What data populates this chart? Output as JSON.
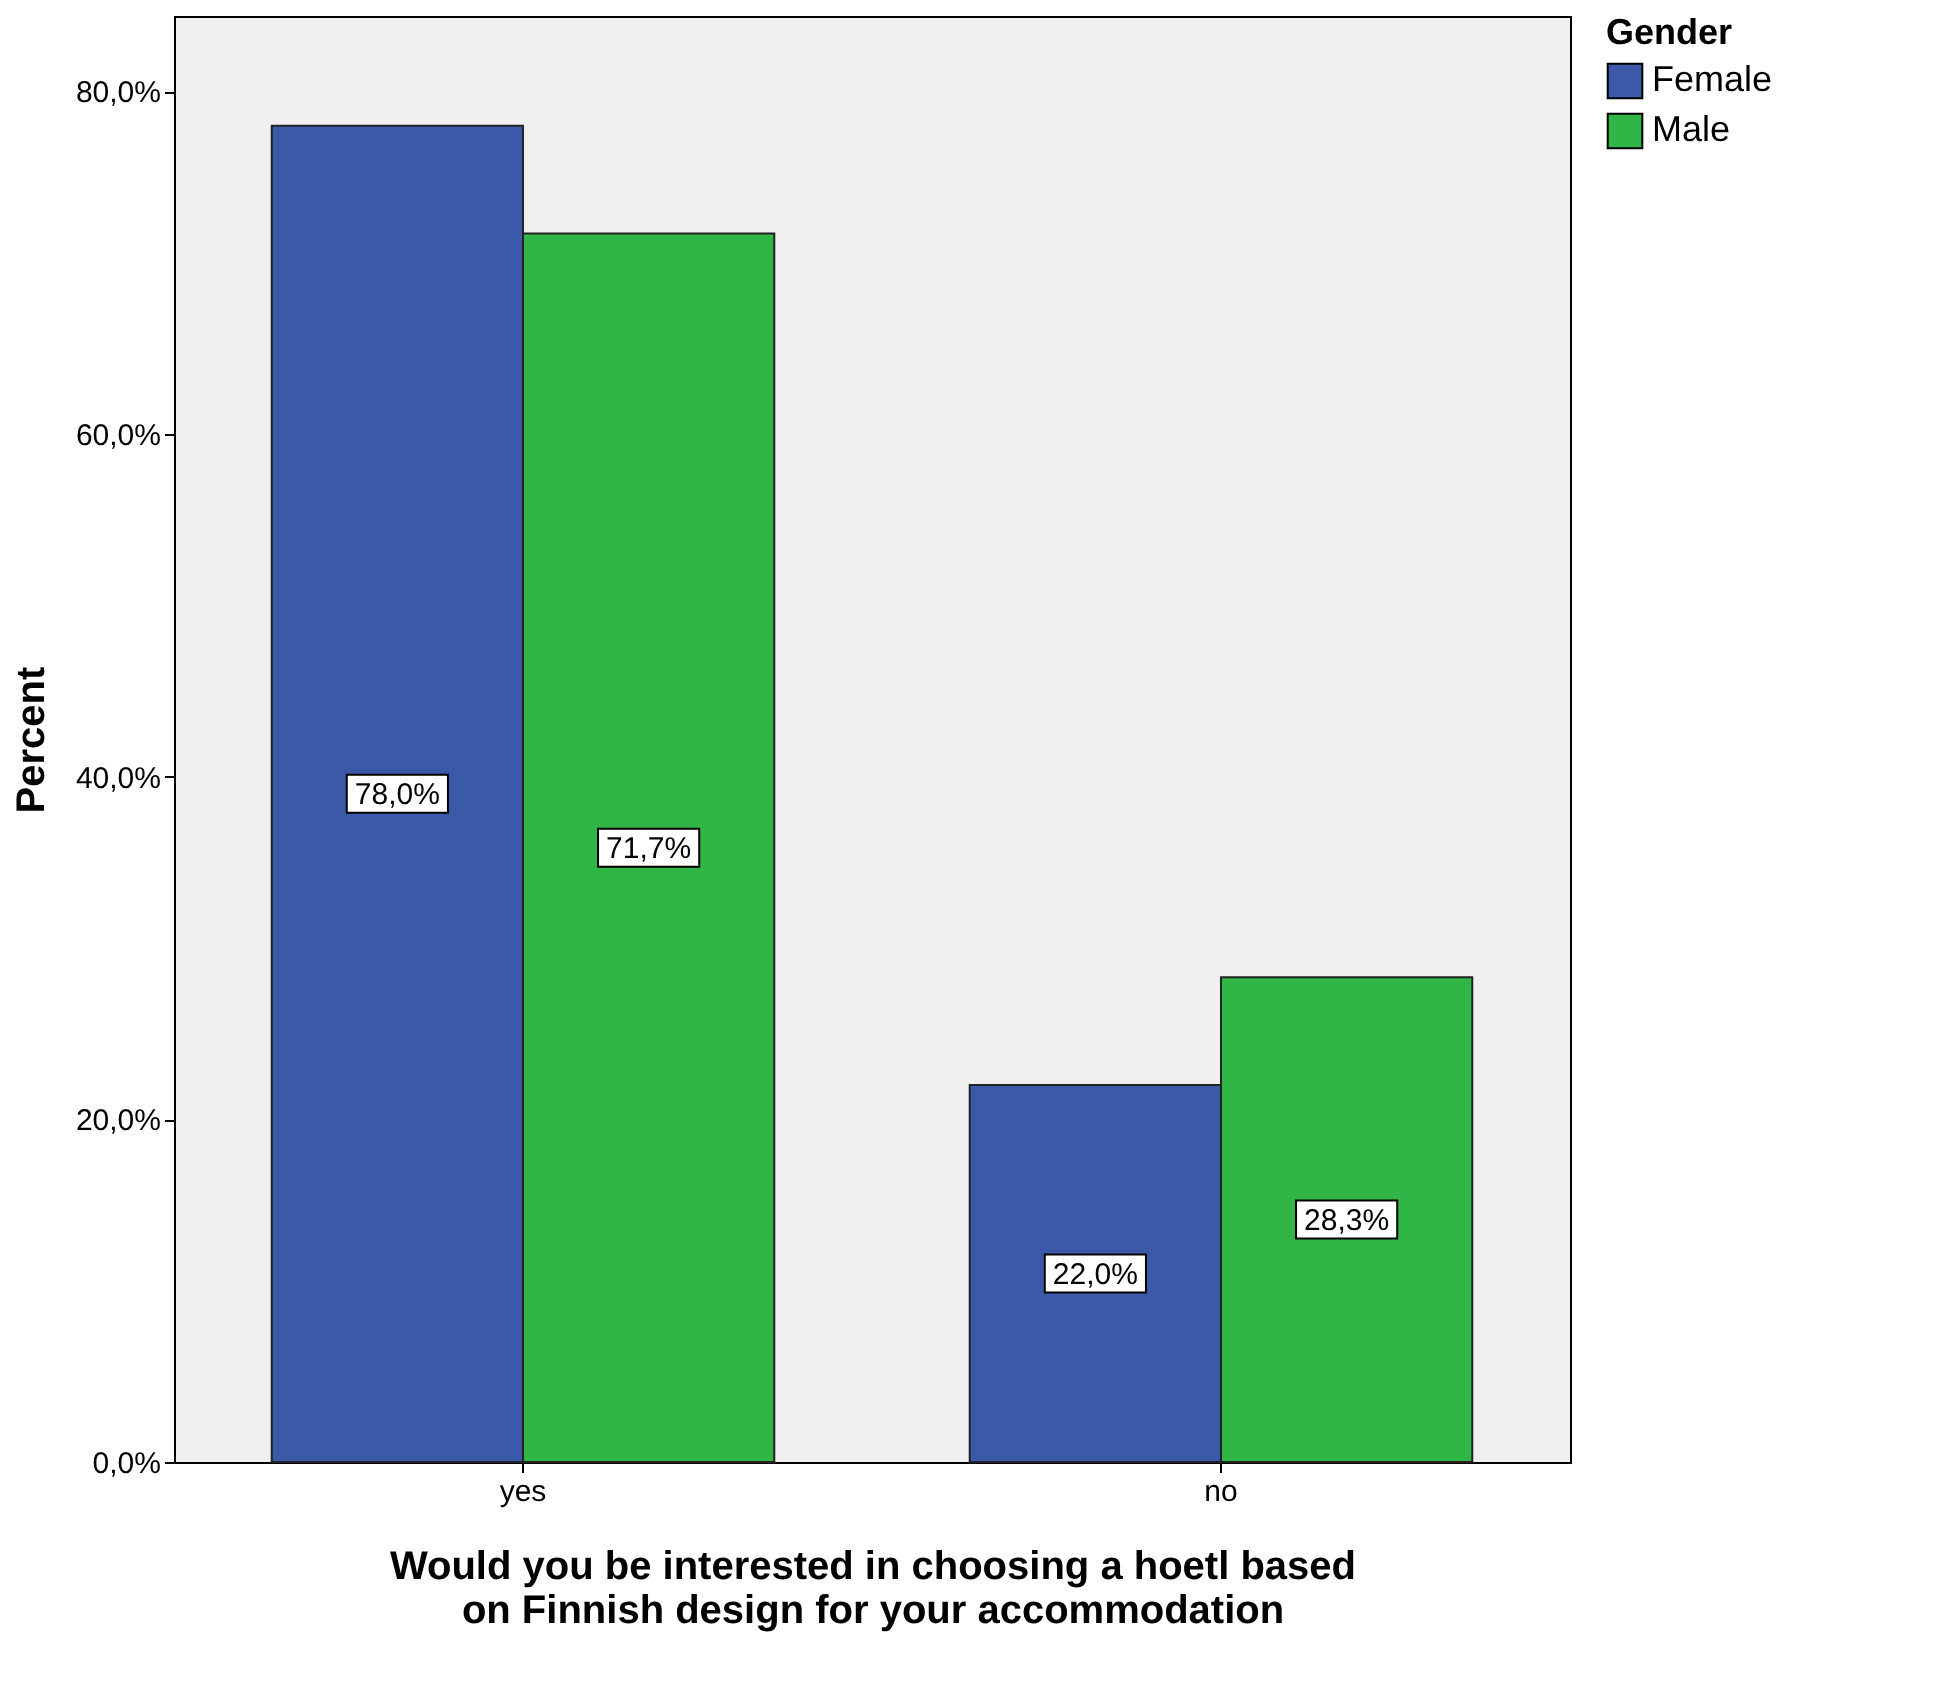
{
  "chart_data": {
    "type": "bar",
    "xlabel": "Would you be interested in choosing a hoetl based\non Finnish design for your accommodation",
    "ylabel": "Percent",
    "legend_title": "Gender",
    "categories": [
      "yes",
      "no"
    ],
    "series": [
      {
        "name": "Female",
        "color": "#3c58a8",
        "values": [
          78.0,
          22.0
        ],
        "value_labels": [
          "78,0%",
          "22,0%"
        ]
      },
      {
        "name": "Male",
        "color": "#30b546",
        "values": [
          71.7,
          28.3
        ],
        "value_labels": [
          "71,7%",
          "28,3%"
        ]
      }
    ],
    "ylim": [
      0,
      84.4
    ],
    "yticks": [
      {
        "value": 0,
        "label": "0,0%"
      },
      {
        "value": 20,
        "label": "20,0%"
      },
      {
        "value": 40,
        "label": "40,0%"
      },
      {
        "value": 60,
        "label": "60,0%"
      },
      {
        "value": 80,
        "label": "80,0%"
      }
    ],
    "grid": false,
    "legend": "top right"
  }
}
